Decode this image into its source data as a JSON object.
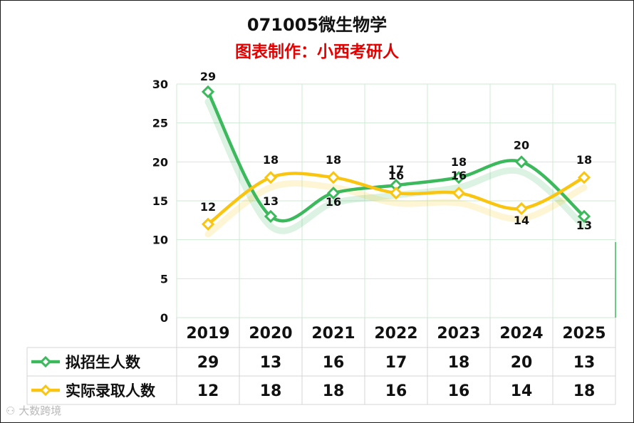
{
  "chart_data": {
    "type": "line",
    "title": "071005微生物学",
    "subtitle": "图表制作：小西考研人",
    "categories": [
      "2019",
      "2020",
      "2021",
      "2022",
      "2023",
      "2024",
      "2025"
    ],
    "series": [
      {
        "name": "拟招生人数",
        "values": [
          29,
          13,
          16,
          17,
          18,
          20,
          13
        ],
        "color": "#3cb95c"
      },
      {
        "name": "实际录取人数",
        "values": [
          12,
          18,
          18,
          16,
          16,
          14,
          18
        ],
        "color": "#f9c511"
      }
    ],
    "ylim": [
      0,
      30
    ],
    "yticks": [
      0,
      5,
      10,
      15,
      20,
      25,
      30
    ],
    "grid": true,
    "legend": "data-table",
    "xlabel": "",
    "ylabel": ""
  },
  "watermark": "大数跨境",
  "colors": {
    "title": "#111111",
    "subtitle": "#e60000",
    "grid": "#cfe8d6",
    "text": "#111111"
  }
}
